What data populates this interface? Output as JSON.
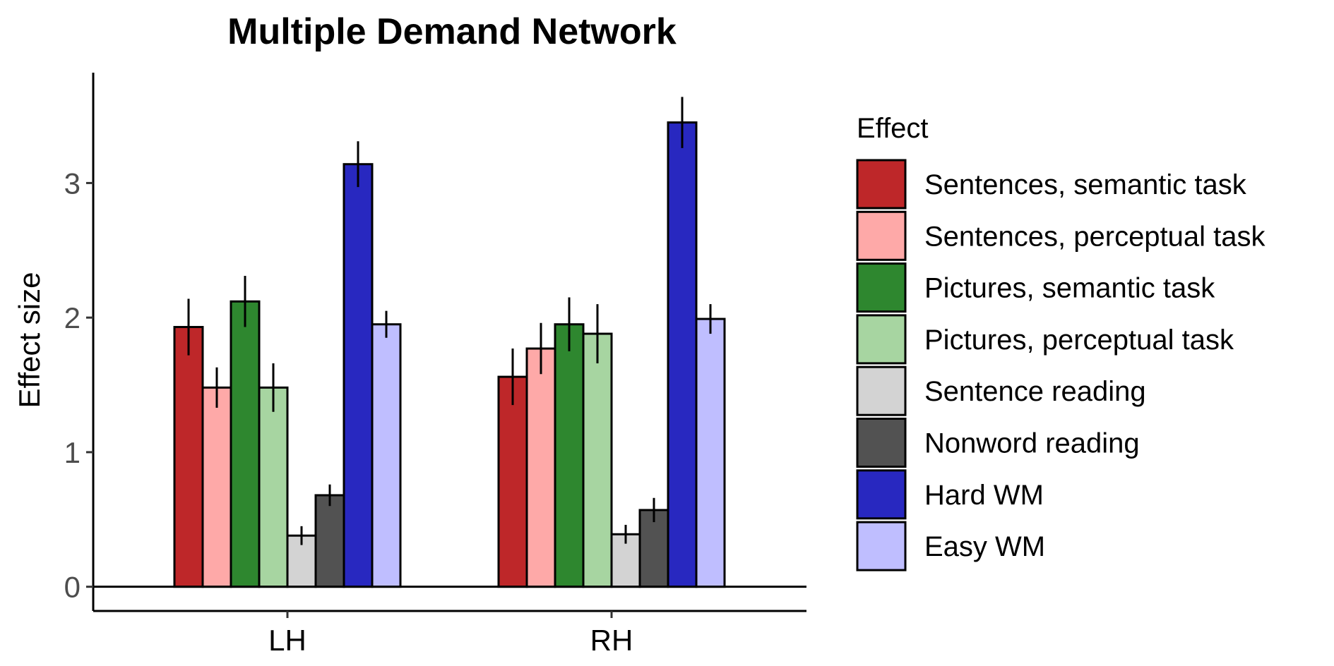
{
  "chart_data": {
    "type": "bar",
    "title": "Multiple Demand Network",
    "xlabel": "",
    "ylabel": "Effect size",
    "ylim": [
      -0.18,
      3.82
    ],
    "yticks": [
      0,
      1,
      2,
      3
    ],
    "categories": [
      "LH",
      "RH"
    ],
    "legend_title": "Effect",
    "legend_position": "right",
    "grid": false,
    "series": [
      {
        "name": "Sentences, semantic task",
        "color": "#BE2729",
        "values": [
          1.93,
          1.56
        ],
        "errors": [
          0.21,
          0.21
        ]
      },
      {
        "name": "Sentences, perceptual task",
        "color": "#FEA9A8",
        "values": [
          1.48,
          1.77
        ],
        "errors": [
          0.15,
          0.19
        ]
      },
      {
        "name": "Pictures, semantic task",
        "color": "#2E872F",
        "values": [
          2.12,
          1.95
        ],
        "errors": [
          0.19,
          0.2
        ]
      },
      {
        "name": "Pictures, perceptual task",
        "color": "#A7D5A1",
        "values": [
          1.48,
          1.88
        ],
        "errors": [
          0.18,
          0.22
        ]
      },
      {
        "name": "Sentence reading",
        "color": "#D3D3D3",
        "values": [
          0.38,
          0.39
        ],
        "errors": [
          0.07,
          0.07
        ]
      },
      {
        "name": "Nonword reading",
        "color": "#525252",
        "values": [
          0.68,
          0.57
        ],
        "errors": [
          0.08,
          0.09
        ]
      },
      {
        "name": "Hard WM",
        "color": "#2828C0",
        "values": [
          3.14,
          3.45
        ],
        "errors": [
          0.17,
          0.19
        ]
      },
      {
        "name": "Easy WM",
        "color": "#BFBEFF",
        "values": [
          1.95,
          1.99
        ],
        "errors": [
          0.1,
          0.11
        ]
      }
    ]
  }
}
